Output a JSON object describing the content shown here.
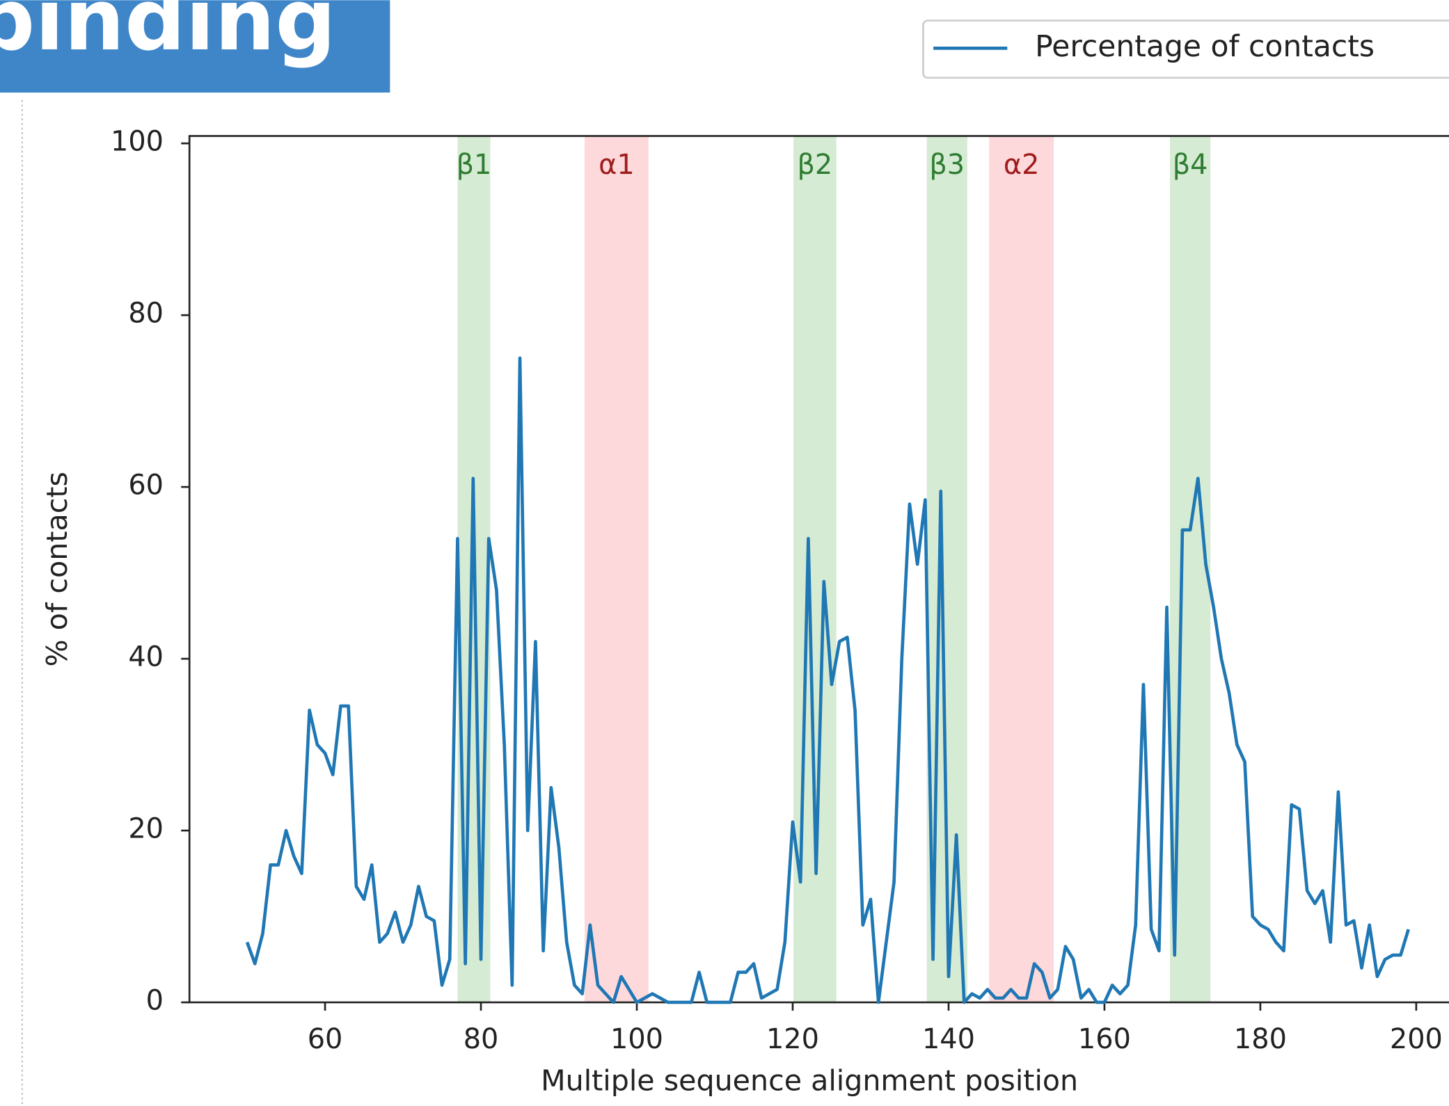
{
  "header": {
    "title": "binding"
  },
  "chart_data": {
    "type": "line",
    "xlabel": "Multiple sequence alignment position",
    "ylabel": "% of contacts",
    "x": [
      50,
      51,
      52,
      53,
      54,
      55,
      56,
      57,
      58,
      59,
      60,
      61,
      62,
      63,
      64,
      65,
      66,
      67,
      68,
      69,
      70,
      71,
      72,
      73,
      74,
      75,
      76,
      77,
      78,
      79,
      80,
      81,
      82,
      83,
      84,
      85,
      86,
      87,
      88,
      89,
      90,
      91,
      92,
      93,
      94,
      95,
      96,
      97,
      98,
      99,
      100,
      101,
      102,
      103,
      104,
      105,
      106,
      107,
      108,
      109,
      110,
      111,
      112,
      113,
      114,
      115,
      116,
      117,
      118,
      119,
      120,
      121,
      122,
      123,
      124,
      125,
      126,
      127,
      128,
      129,
      130,
      131,
      132,
      133,
      134,
      135,
      136,
      137,
      138,
      139,
      140,
      141,
      142,
      143,
      144,
      145,
      146,
      147,
      148,
      149,
      150,
      151,
      152,
      153,
      154,
      155,
      156,
      157,
      158,
      159,
      160,
      161,
      162,
      163,
      164,
      165,
      166,
      167,
      168,
      169,
      170,
      171,
      172,
      173,
      174,
      175,
      176,
      177,
      178,
      179,
      180,
      181,
      182,
      183,
      184,
      185,
      186,
      187,
      188,
      189,
      190,
      191,
      192,
      193,
      194,
      195,
      196,
      197,
      198,
      199
    ],
    "series": [
      {
        "name": "Percentage of contacts",
        "color": "#1f77b4",
        "values": [
          7,
          4.5,
          8,
          16,
          16,
          20,
          17,
          15,
          34,
          30,
          29,
          26.5,
          34.5,
          34.5,
          13.5,
          12,
          16,
          7,
          8,
          10.5,
          7,
          9,
          13.5,
          10,
          9.5,
          2,
          5,
          54,
          4.5,
          61,
          5,
          54,
          48,
          30,
          2,
          75,
          20,
          42,
          6,
          25,
          18,
          7,
          2,
          1,
          9,
          2,
          1,
          0,
          3,
          1.5,
          0,
          0.5,
          1,
          0.5,
          0,
          0,
          0,
          0,
          3.5,
          0,
          0,
          0,
          0,
          3.5,
          3.5,
          4.5,
          0.5,
          1,
          1.5,
          7,
          21,
          14,
          54,
          15,
          49,
          37,
          42,
          42.5,
          34,
          9,
          12,
          0,
          7,
          14,
          40,
          58,
          51,
          58.5,
          5,
          59.5,
          3,
          19.5,
          0,
          1,
          0.5,
          1.5,
          0.5,
          0.5,
          1.5,
          0.5,
          0.5,
          4.5,
          3.5,
          0.5,
          1.5,
          6.5,
          5,
          0.5,
          1.5,
          0,
          0,
          2,
          1,
          2,
          9,
          37,
          8.5,
          6,
          46,
          5.5,
          55,
          55,
          61,
          51,
          46,
          40,
          36,
          30,
          28,
          10,
          9,
          8.5,
          7,
          6,
          23,
          22.5,
          13,
          11.5,
          13,
          7,
          24.5,
          9,
          9.5,
          4,
          9,
          3,
          5,
          5.5,
          5.5,
          8.5
        ]
      }
    ],
    "regions": [
      {
        "label": "β1",
        "start": 77,
        "end": 81.2,
        "color": "#d6ebd3",
        "text_color": "#2e7d32"
      },
      {
        "label": "α1",
        "start": 93.3,
        "end": 101.5,
        "color": "#fdd9dc",
        "text_color": "#a01c1c"
      },
      {
        "label": "β2",
        "start": 120.1,
        "end": 125.6,
        "color": "#d6ebd3",
        "text_color": "#2e7d32"
      },
      {
        "label": "β3",
        "start": 137.2,
        "end": 142.4,
        "color": "#d6ebd3",
        "text_color": "#2e7d32"
      },
      {
        "label": "α2",
        "start": 145.2,
        "end": 153.5,
        "color": "#fdd9dc",
        "text_color": "#a01c1c"
      },
      {
        "label": "β4",
        "start": 168.4,
        "end": 173.6,
        "color": "#d6ebd3",
        "text_color": "#2e7d32"
      }
    ],
    "xlim": [
      42.6,
      208
    ],
    "ylim": [
      0,
      100.86
    ],
    "xticks": [
      60,
      80,
      100,
      120,
      140,
      160,
      180,
      200
    ],
    "yticks": [
      0,
      20,
      40,
      60,
      80,
      100
    ],
    "legend": "upper right"
  }
}
